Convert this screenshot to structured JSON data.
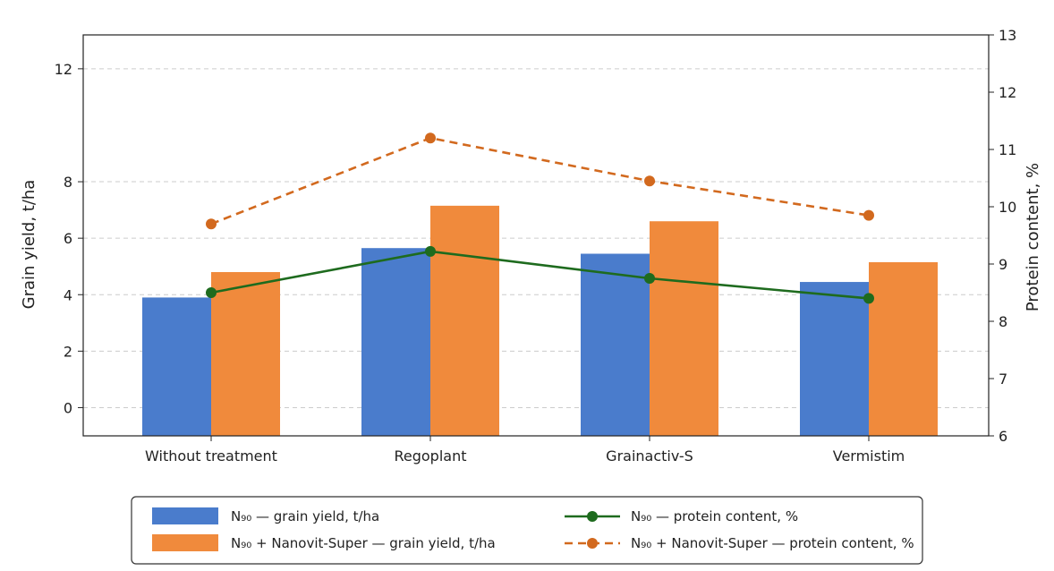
{
  "chart_data": {
    "type": "bar",
    "categories": [
      "Without treatment",
      "Regoplant",
      "Grainactiv-S",
      "Vermistim"
    ],
    "ylabel": "Grain yield, t/ha",
    "ylim": [
      -1,
      13.2
    ],
    "yticks": [
      0,
      2,
      4,
      6,
      8,
      12
    ],
    "y2label": "Protein content, %",
    "y2lim": [
      6,
      13
    ],
    "y2ticks": [
      6,
      7,
      8,
      9,
      10,
      11,
      12,
      13
    ],
    "grid": true,
    "legend_position": "bottom",
    "series": [
      {
        "name": "N₉₀ — grain yield, t/ha",
        "kind": "bar",
        "axis": "left",
        "color": "#4a7ccc",
        "values": [
          3.9,
          5.65,
          5.45,
          4.45
        ]
      },
      {
        "name": "N₉₀ + Nanovit-Super — grain yield, t/ha",
        "kind": "bar",
        "axis": "left",
        "color": "#f08a3c",
        "values": [
          4.8,
          7.15,
          6.6,
          5.15
        ]
      },
      {
        "name": "N₉₀ — protein content, %",
        "kind": "line",
        "axis": "right",
        "color": "#1e6b1e",
        "dash": "solid",
        "values": [
          8.5,
          9.22,
          8.75,
          8.4
        ]
      },
      {
        "name": "N₉₀ + Nanovit-Super — protein content, %",
        "kind": "line",
        "axis": "right",
        "color": "#d2691e",
        "dash": "dashed",
        "values": [
          9.7,
          11.2,
          10.45,
          9.85
        ]
      }
    ]
  }
}
